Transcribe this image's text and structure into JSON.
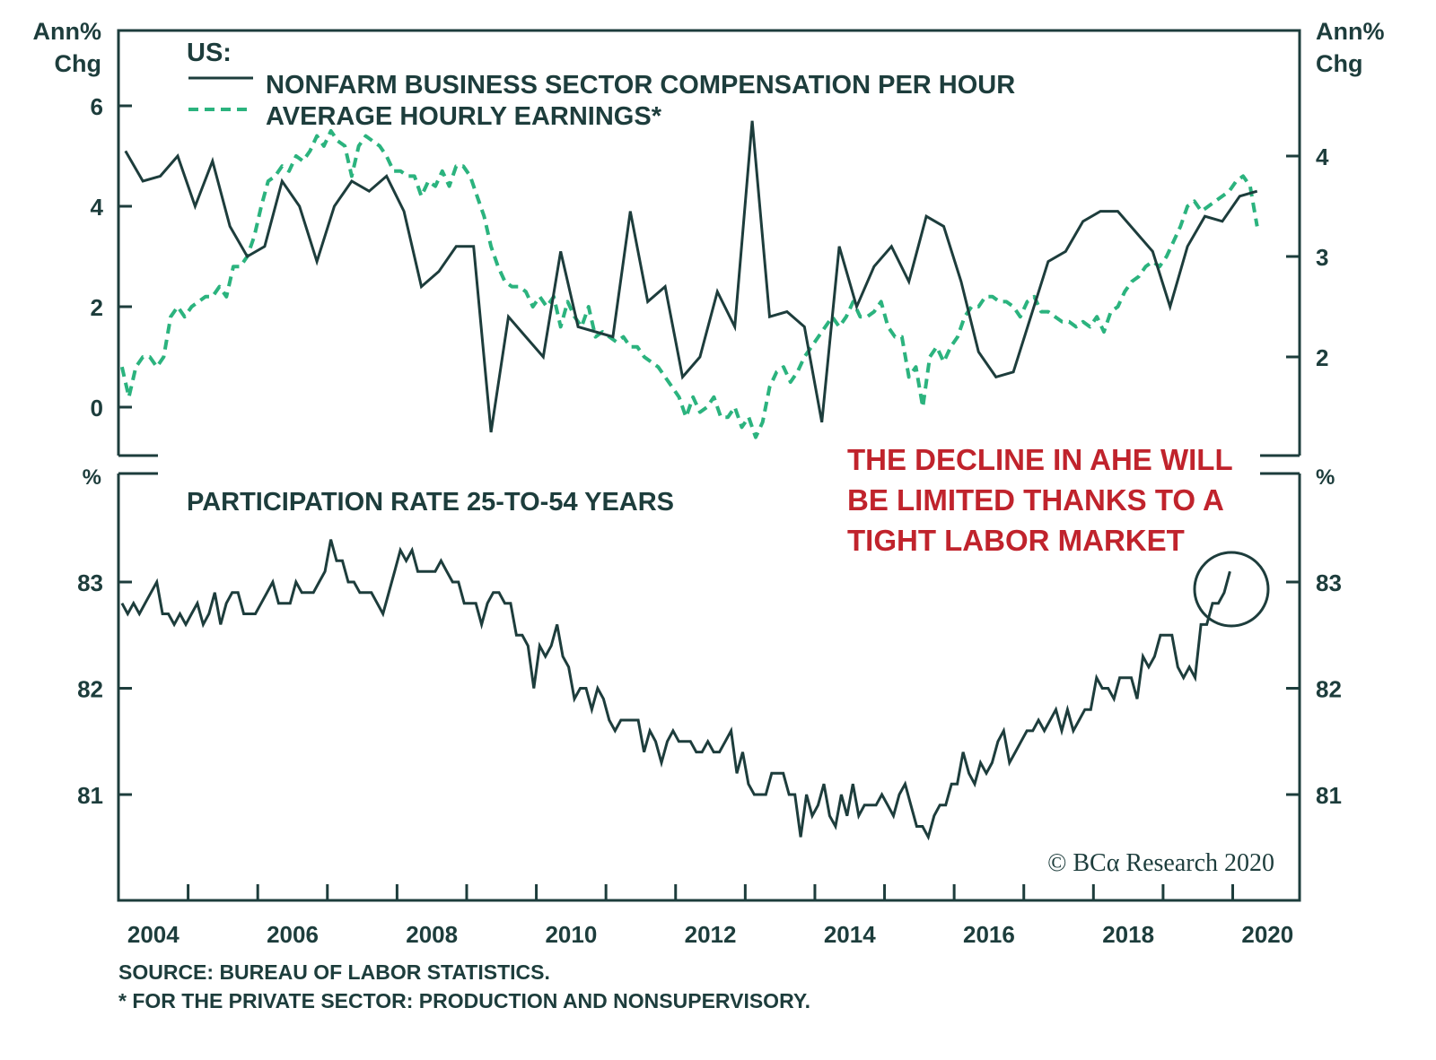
{
  "chart_data": [
    {
      "type": "line",
      "panel": "top",
      "title": "US:",
      "left_axis": {
        "label_line1": "Ann%",
        "label_line2": "Chg",
        "range": [
          -1,
          7.5
        ],
        "ticks": [
          0,
          2,
          4,
          6
        ]
      },
      "right_axis": {
        "label_line1": "Ann%",
        "label_line2": "Chg",
        "range": [
          1,
          5.25
        ],
        "ticks": [
          2,
          3,
          4
        ]
      },
      "x_range": [
        2003.5,
        2020.46
      ],
      "series": [
        {
          "name": "NONFARM BUSINESS SECTOR COMPENSATION PER HOUR",
          "axis": "left",
          "style": "solid",
          "color": "#1d3d3c",
          "x": [
            2003.6,
            2003.85,
            2004.1,
            2004.35,
            2004.6,
            2004.85,
            2005.1,
            2005.35,
            2005.6,
            2005.85,
            2006.1,
            2006.35,
            2006.6,
            2006.85,
            2007.1,
            2007.35,
            2007.6,
            2007.85,
            2008.1,
            2008.35,
            2008.6,
            2008.85,
            2009.1,
            2009.35,
            2009.6,
            2009.85,
            2010.1,
            2010.35,
            2010.6,
            2010.85,
            2011.1,
            2011.35,
            2011.6,
            2011.85,
            2012.1,
            2012.35,
            2012.6,
            2012.85,
            2013.1,
            2013.35,
            2013.6,
            2013.85,
            2014.1,
            2014.35,
            2014.6,
            2014.85,
            2015.1,
            2015.35,
            2015.6,
            2015.85,
            2016.1,
            2016.35,
            2016.6,
            2016.85,
            2017.1,
            2017.35,
            2017.6,
            2017.85,
            2018.1,
            2018.35,
            2018.6,
            2018.85,
            2019.1,
            2019.35,
            2019.6,
            2019.85
          ],
          "values": [
            5.1,
            4.5,
            4.6,
            5.0,
            4.0,
            4.9,
            3.6,
            3.0,
            3.2,
            4.5,
            4.0,
            2.9,
            4.0,
            4.5,
            4.3,
            4.6,
            3.9,
            2.4,
            2.7,
            3.2,
            3.2,
            -0.5,
            1.8,
            1.4,
            1.0,
            3.1,
            1.6,
            1.5,
            1.4,
            3.9,
            2.1,
            2.4,
            0.6,
            1.0,
            2.3,
            1.6,
            5.7,
            1.8,
            1.9,
            1.6,
            -0.3,
            3.2,
            2.0,
            2.8,
            3.2,
            2.5,
            3.8,
            3.6,
            2.5,
            1.1,
            0.6,
            0.7,
            1.8,
            2.9,
            3.1,
            3.7,
            3.9,
            3.9,
            3.5,
            3.1,
            2.0,
            3.2,
            3.8,
            3.7,
            4.2,
            4.3
          ]
        },
        {
          "name": "AVERAGE HOURLY EARNINGS*",
          "axis": "right",
          "style": "dashed",
          "color": "#2bb37e",
          "x": [
            2003.55,
            2003.65,
            2003.75,
            2003.85,
            2003.95,
            2004.05,
            2004.15,
            2004.25,
            2004.35,
            2004.45,
            2004.55,
            2004.65,
            2004.75,
            2004.85,
            2004.95,
            2005.05,
            2005.15,
            2005.25,
            2005.35,
            2005.45,
            2005.55,
            2005.65,
            2005.75,
            2005.85,
            2005.95,
            2006.05,
            2006.15,
            2006.25,
            2006.35,
            2006.45,
            2006.55,
            2006.65,
            2006.75,
            2006.85,
            2006.95,
            2007.05,
            2007.15,
            2007.25,
            2007.35,
            2007.45,
            2007.55,
            2007.65,
            2007.75,
            2007.85,
            2007.95,
            2008.05,
            2008.15,
            2008.25,
            2008.35,
            2008.45,
            2008.55,
            2008.65,
            2008.75,
            2008.85,
            2008.95,
            2009.05,
            2009.15,
            2009.25,
            2009.35,
            2009.45,
            2009.55,
            2009.65,
            2009.75,
            2009.85,
            2009.95,
            2010.05,
            2010.15,
            2010.25,
            2010.35,
            2010.45,
            2010.55,
            2010.65,
            2010.75,
            2010.85,
            2010.95,
            2011.05,
            2011.15,
            2011.25,
            2011.35,
            2011.45,
            2011.55,
            2011.65,
            2011.75,
            2011.85,
            2011.95,
            2012.05,
            2012.15,
            2012.25,
            2012.35,
            2012.45,
            2012.55,
            2012.65,
            2012.75,
            2012.85,
            2012.95,
            2013.05,
            2013.15,
            2013.25,
            2013.35,
            2013.45,
            2013.55,
            2013.65,
            2013.75,
            2013.85,
            2013.95,
            2014.05,
            2014.15,
            2014.25,
            2014.35,
            2014.45,
            2014.55,
            2014.65,
            2014.75,
            2014.85,
            2014.95,
            2015.05,
            2015.15,
            2015.25,
            2015.35,
            2015.45,
            2015.55,
            2015.65,
            2015.75,
            2015.85,
            2015.95,
            2016.05,
            2016.15,
            2016.25,
            2016.35,
            2016.45,
            2016.55,
            2016.65,
            2016.75,
            2016.85,
            2016.95,
            2017.05,
            2017.15,
            2017.25,
            2017.35,
            2017.45,
            2017.55,
            2017.65,
            2017.75,
            2017.85,
            2017.95,
            2018.05,
            2018.15,
            2018.25,
            2018.35,
            2018.45,
            2018.55,
            2018.65,
            2018.75,
            2018.85,
            2018.95,
            2019.05,
            2019.15,
            2019.25,
            2019.35,
            2019.45,
            2019.55,
            2019.65,
            2019.75,
            2019.85
          ],
          "values": [
            1.9,
            1.6,
            1.9,
            2.0,
            2.0,
            1.9,
            2.0,
            2.4,
            2.5,
            2.4,
            2.5,
            2.55,
            2.6,
            2.6,
            2.7,
            2.6,
            2.9,
            2.9,
            3.0,
            3.2,
            3.5,
            3.75,
            3.8,
            3.9,
            3.85,
            4.0,
            3.95,
            4.05,
            4.2,
            4.1,
            4.25,
            4.15,
            4.1,
            3.8,
            4.1,
            4.2,
            4.15,
            4.1,
            4.0,
            3.85,
            3.85,
            3.8,
            3.8,
            3.6,
            3.75,
            3.7,
            3.85,
            3.7,
            3.9,
            3.9,
            3.8,
            3.6,
            3.4,
            3.1,
            2.9,
            2.75,
            2.7,
            2.7,
            2.65,
            2.5,
            2.6,
            2.5,
            2.6,
            2.3,
            2.55,
            2.4,
            2.3,
            2.5,
            2.2,
            2.25,
            2.2,
            2.15,
            2.2,
            2.1,
            2.1,
            2.0,
            1.95,
            1.9,
            1.8,
            1.7,
            1.6,
            1.4,
            1.6,
            1.45,
            1.5,
            1.6,
            1.4,
            1.4,
            1.5,
            1.3,
            1.4,
            1.2,
            1.35,
            1.7,
            1.85,
            1.9,
            1.75,
            1.85,
            2.0,
            2.1,
            2.2,
            2.3,
            2.4,
            2.3,
            2.4,
            2.55,
            2.4,
            2.4,
            2.45,
            2.55,
            2.3,
            2.2,
            2.2,
            1.8,
            1.9,
            1.5,
            2.0,
            2.1,
            1.95,
            2.1,
            2.2,
            2.4,
            2.5,
            2.5,
            2.6,
            2.6,
            2.55,
            2.55,
            2.5,
            2.4,
            2.55,
            2.6,
            2.45,
            2.45,
            2.4,
            2.35,
            2.35,
            2.3,
            2.35,
            2.3,
            2.4,
            2.25,
            2.45,
            2.5,
            2.65,
            2.75,
            2.8,
            2.9,
            2.95,
            2.9,
            3.0,
            3.15,
            3.3,
            3.5,
            3.55,
            3.45,
            3.5,
            3.55,
            3.6,
            3.65,
            3.75,
            3.8,
            3.7,
            3.3
          ]
        }
      ]
    },
    {
      "type": "line",
      "panel": "bottom",
      "title": "PARTICIPATION RATE 25-TO-54 YEARS",
      "left_axis": {
        "label": "%",
        "range": [
          80.0,
          84.0
        ],
        "ticks": [
          81,
          82,
          83
        ]
      },
      "right_axis": {
        "label": "%",
        "range": [
          80.0,
          84.0
        ],
        "ticks": [
          81,
          82,
          83
        ]
      },
      "x_range": [
        2003.5,
        2020.46
      ],
      "x_ticks": [
        "2004",
        "2006",
        "2008",
        "2010",
        "2012",
        "2014",
        "2016",
        "2018",
        "2020"
      ],
      "series": [
        {
          "name": "Participation rate 25-to-54 years",
          "style": "solid",
          "color": "#1d3d3c",
          "start": 2003.55,
          "step": 0.0833,
          "values": [
            82.8,
            82.7,
            82.8,
            82.7,
            82.8,
            82.9,
            83.0,
            82.7,
            82.7,
            82.6,
            82.7,
            82.6,
            82.7,
            82.8,
            82.6,
            82.7,
            82.9,
            82.6,
            82.8,
            82.9,
            82.9,
            82.7,
            82.7,
            82.7,
            82.8,
            82.9,
            83.0,
            82.8,
            82.8,
            82.8,
            83.0,
            82.9,
            82.9,
            82.9,
            83.0,
            83.1,
            83.4,
            83.2,
            83.2,
            83.0,
            83.0,
            82.9,
            82.9,
            82.9,
            82.8,
            82.7,
            82.9,
            83.1,
            83.3,
            83.2,
            83.3,
            83.1,
            83.1,
            83.1,
            83.1,
            83.2,
            83.1,
            83.0,
            83.0,
            82.8,
            82.8,
            82.8,
            82.6,
            82.8,
            82.9,
            82.9,
            82.8,
            82.8,
            82.5,
            82.5,
            82.4,
            82.0,
            82.4,
            82.3,
            82.4,
            82.6,
            82.3,
            82.2,
            81.9,
            82.0,
            82.0,
            81.8,
            82.0,
            81.9,
            81.7,
            81.6,
            81.7,
            81.7,
            81.7,
            81.7,
            81.4,
            81.6,
            81.5,
            81.3,
            81.5,
            81.6,
            81.5,
            81.5,
            81.5,
            81.4,
            81.4,
            81.5,
            81.4,
            81.4,
            81.5,
            81.6,
            81.2,
            81.4,
            81.1,
            81.0,
            81.0,
            81.0,
            81.2,
            81.2,
            81.2,
            81.0,
            81.0,
            80.6,
            81.0,
            80.8,
            80.9,
            81.1,
            80.8,
            80.7,
            81.0,
            80.8,
            81.1,
            80.8,
            80.9,
            80.9,
            80.9,
            81.0,
            80.9,
            80.8,
            81.0,
            81.1,
            80.9,
            80.7,
            80.7,
            80.6,
            80.8,
            80.9,
            80.9,
            81.1,
            81.1,
            81.4,
            81.2,
            81.1,
            81.3,
            81.2,
            81.3,
            81.5,
            81.6,
            81.3,
            81.4,
            81.5,
            81.6,
            81.6,
            81.7,
            81.6,
            81.7,
            81.8,
            81.6,
            81.8,
            81.6,
            81.7,
            81.8,
            81.8,
            82.1,
            82.0,
            82.0,
            81.9,
            82.1,
            82.1,
            82.1,
            81.9,
            82.3,
            82.2,
            82.3,
            82.5,
            82.5,
            82.5,
            82.2,
            82.1,
            82.2,
            82.1,
            82.6,
            82.6,
            82.8,
            82.8,
            82.9,
            83.1
          ]
        }
      ]
    }
  ],
  "legend": {
    "title": "US:",
    "items": [
      {
        "label": "NONFARM BUSINESS SECTOR COMPENSATION PER HOUR",
        "style": "solid",
        "color": "#1d3d3c"
      },
      {
        "label": "AVERAGE HOURLY EARNINGS*",
        "style": "dashed",
        "color": "#2bb37e"
      }
    ]
  },
  "annotation": {
    "lines": [
      "THE DECLINE IN AHE WILL",
      "BE LIMITED THANKS TO A",
      "TIGHT LABOR MARKET"
    ],
    "color": "#c0232c",
    "highlight": "circle around latest participation readings (late 2019)"
  },
  "top_axis_labels": {
    "left": [
      "Ann%",
      "Chg"
    ],
    "right": [
      "Ann%",
      "Chg"
    ],
    "left_ticks": [
      "6",
      "4",
      "2",
      "0"
    ],
    "right_ticks": [
      "4",
      "3",
      "2"
    ]
  },
  "bottom_axis_labels": {
    "left_unit": "%",
    "right_unit": "%",
    "ticks": [
      "83",
      "82",
      "81"
    ]
  },
  "x_labels": [
    "2004",
    "2006",
    "2008",
    "2010",
    "2012",
    "2014",
    "2016",
    "2018",
    "2020"
  ],
  "watermark": "© BCα Research 2020",
  "footnotes": {
    "source": "SOURCE: BUREAU OF LABOR STATISTICS.",
    "note": "* FOR THE PRIVATE SECTOR: PRODUCTION AND NONSUPERVISORY."
  },
  "colors": {
    "ink": "#1d3d3c",
    "ahe": "#2bb37e",
    "annotation": "#c0232c"
  }
}
